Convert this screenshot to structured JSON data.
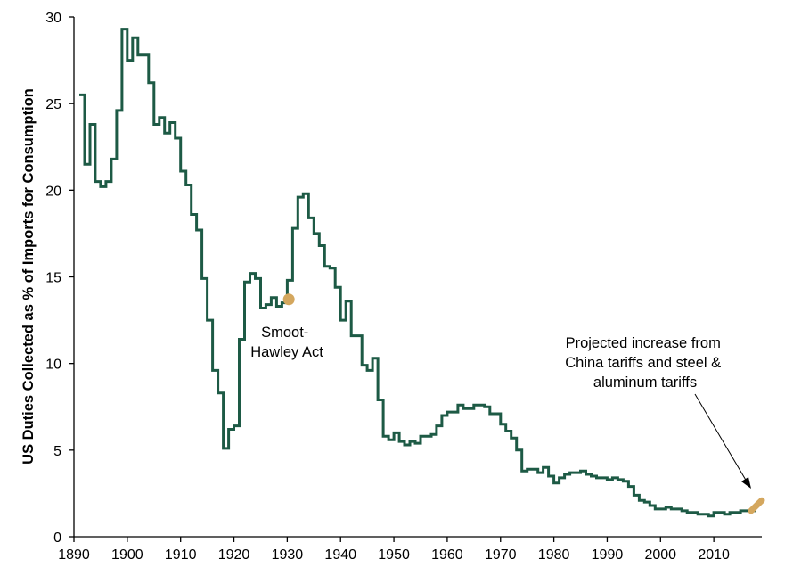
{
  "chart_data": {
    "type": "line",
    "title": "",
    "xlabel": "",
    "ylabel": "US Duties Collected as % of Imports for Consumption",
    "xlim": [
      1890,
      2019
    ],
    "ylim": [
      0,
      30
    ],
    "xticks": [
      1890,
      1900,
      1910,
      1920,
      1930,
      1940,
      1950,
      1960,
      1970,
      1980,
      1990,
      2000,
      2010
    ],
    "yticks": [
      0,
      5,
      10,
      15,
      20,
      25,
      30
    ],
    "grid": false,
    "legend": "none",
    "series": [
      {
        "color": "#1d5a45",
        "step": true,
        "x": [
          1891,
          1892,
          1893,
          1894,
          1895,
          1896,
          1897,
          1898,
          1899,
          1900,
          1901,
          1902,
          1903,
          1904,
          1905,
          1906,
          1907,
          1908,
          1909,
          1910,
          1911,
          1912,
          1913,
          1914,
          1915,
          1916,
          1917,
          1918,
          1919,
          1920,
          1921,
          1922,
          1923,
          1924,
          1925,
          1926,
          1927,
          1928,
          1929,
          1930,
          1931,
          1932,
          1933,
          1934,
          1935,
          1936,
          1937,
          1938,
          1939,
          1940,
          1941,
          1942,
          1943,
          1944,
          1945,
          1946,
          1947,
          1948,
          1949,
          1950,
          1951,
          1952,
          1953,
          1954,
          1955,
          1956,
          1957,
          1958,
          1959,
          1960,
          1961,
          1962,
          1963,
          1964,
          1965,
          1966,
          1967,
          1968,
          1969,
          1970,
          1971,
          1972,
          1973,
          1974,
          1975,
          1976,
          1977,
          1978,
          1979,
          1980,
          1981,
          1982,
          1983,
          1984,
          1985,
          1986,
          1987,
          1988,
          1989,
          1990,
          1991,
          1992,
          1993,
          1994,
          1995,
          1996,
          1997,
          1998,
          1999,
          2000,
          2001,
          2002,
          2003,
          2004,
          2005,
          2006,
          2007,
          2008,
          2009,
          2010,
          2011,
          2012,
          2013,
          2014,
          2015,
          2016,
          2017
        ],
        "y": [
          25.5,
          21.5,
          23.8,
          20.5,
          20.2,
          20.5,
          21.8,
          24.6,
          29.3,
          27.5,
          28.8,
          27.8,
          27.8,
          26.2,
          23.8,
          24.2,
          23.3,
          23.9,
          23.0,
          21.1,
          20.3,
          18.6,
          17.7,
          14.9,
          12.5,
          9.6,
          8.3,
          5.1,
          6.2,
          6.4,
          11.4,
          14.7,
          15.2,
          14.9,
          13.2,
          13.4,
          13.8,
          13.3,
          13.5,
          14.8,
          17.8,
          19.6,
          19.8,
          18.4,
          17.5,
          16.8,
          15.6,
          15.5,
          14.4,
          12.5,
          13.6,
          11.6,
          11.6,
          9.9,
          9.6,
          10.3,
          7.9,
          5.8,
          5.6,
          6.0,
          5.5,
          5.3,
          5.5,
          5.4,
          5.8,
          5.8,
          5.9,
          6.4,
          7.0,
          7.2,
          7.2,
          7.6,
          7.4,
          7.4,
          7.6,
          7.6,
          7.5,
          7.1,
          7.1,
          6.5,
          6.1,
          5.7,
          5.0,
          3.8,
          3.9,
          3.9,
          3.7,
          4.0,
          3.5,
          3.1,
          3.4,
          3.6,
          3.7,
          3.7,
          3.8,
          3.6,
          3.5,
          3.4,
          3.4,
          3.3,
          3.4,
          3.3,
          3.2,
          2.9,
          2.4,
          2.1,
          2.0,
          1.8,
          1.6,
          1.6,
          1.7,
          1.6,
          1.6,
          1.5,
          1.4,
          1.4,
          1.3,
          1.3,
          1.2,
          1.4,
          1.4,
          1.3,
          1.4,
          1.4,
          1.5,
          1.5,
          1.5
        ]
      },
      {
        "color": "#d4a75e",
        "markers": true,
        "x": [
          2017,
          2018,
          2019
        ],
        "y": [
          1.5,
          1.8,
          2.1
        ]
      }
    ],
    "annotations": [
      {
        "text_lines": [
          "Smoot-",
          "Hawley Act"
        ],
        "point": [
          1930.3,
          13.7
        ]
      },
      {
        "text_lines": [
          "Projected increase from",
          "China tariffs and steel &",
          "aluminum tariffs"
        ],
        "point": [
          2017.3,
          2.6
        ]
      }
    ]
  }
}
